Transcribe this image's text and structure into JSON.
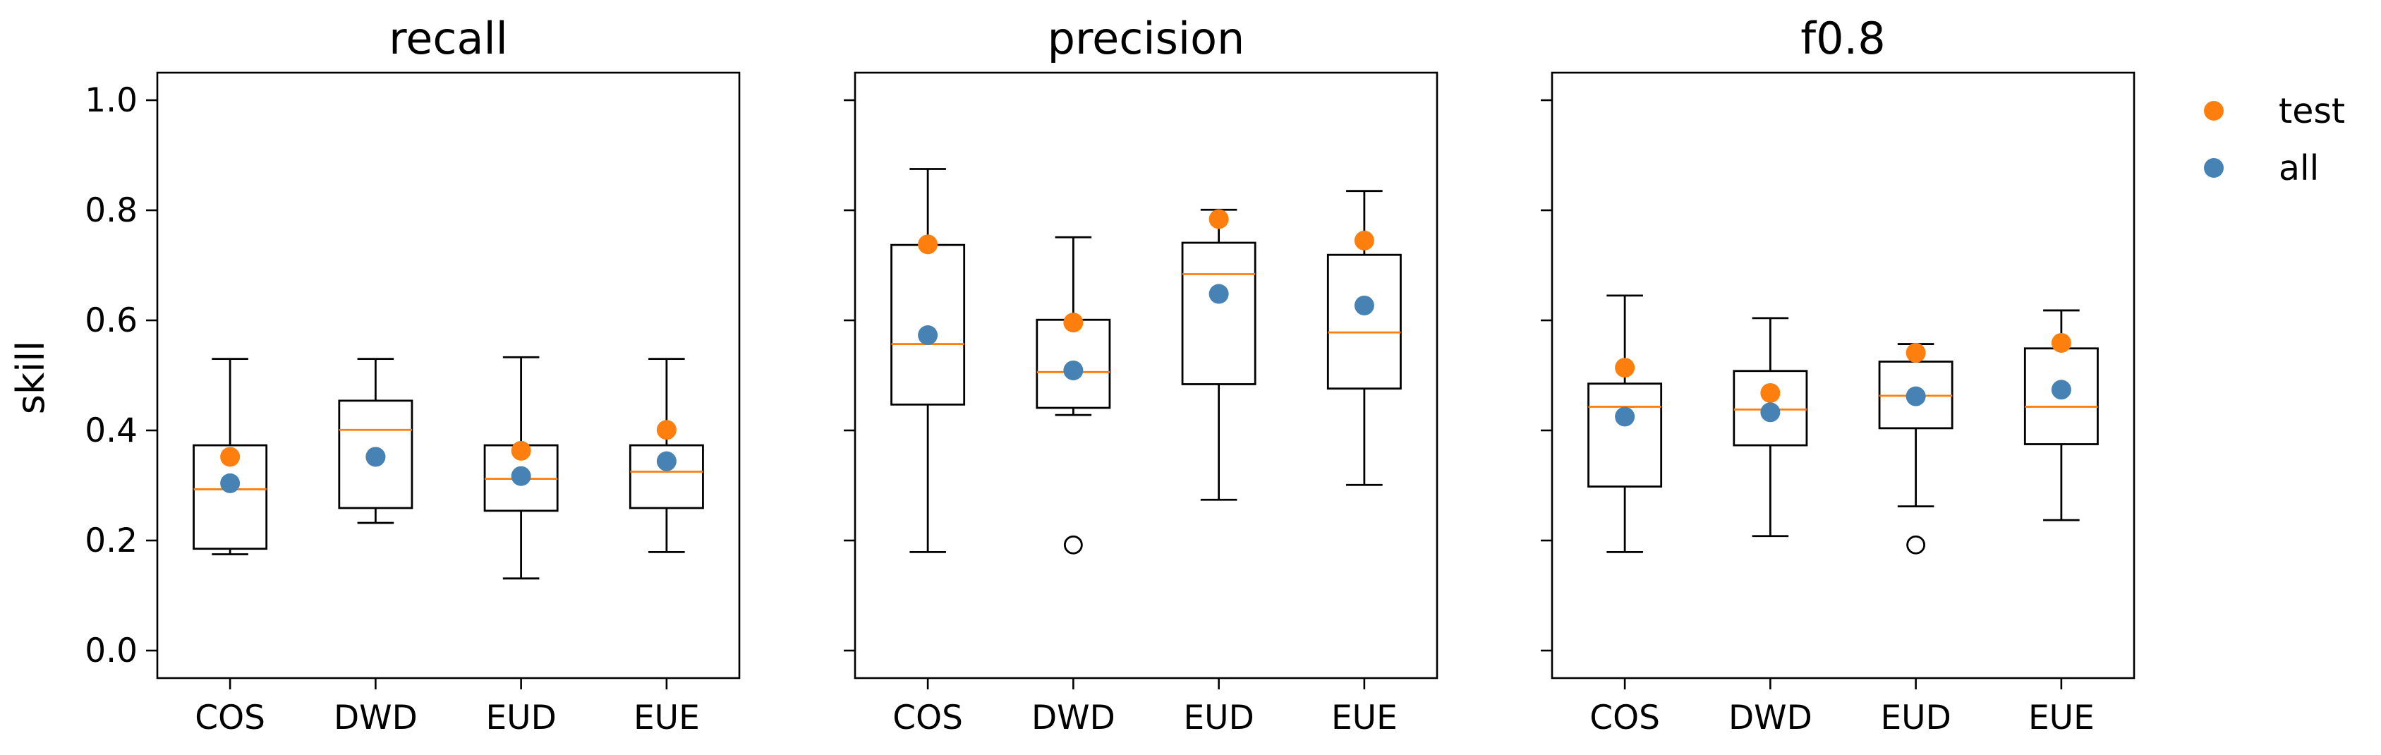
{
  "chart_data": {
    "type": "box",
    "ylabel": "skill",
    "ylim": [
      -0.05,
      1.05
    ],
    "yticks": [
      "0.0",
      "0.2",
      "0.4",
      "0.6",
      "0.8",
      "1.0"
    ],
    "yticks_values": [
      0.0,
      0.2,
      0.4,
      0.6,
      0.8,
      1.0
    ],
    "categories": [
      "COS",
      "DWD",
      "EUD",
      "EUE"
    ],
    "legend": {
      "placement": "outside-top-right",
      "entries": [
        {
          "label": "test",
          "color": "#ff7f0e"
        },
        {
          "label": "all",
          "color": "#4682b4"
        }
      ]
    },
    "colors": {
      "test": "#ff7f0e",
      "all": "#4682b4",
      "median": "#ff7f0e",
      "box": "#000000"
    },
    "panels": [
      {
        "title": "recall",
        "boxes": [
          {
            "category": "COS",
            "whisker_low": 0.175,
            "q1": 0.185,
            "median": 0.293,
            "q3": 0.373,
            "whisker_high": 0.53,
            "fliers": [],
            "test": 0.352,
            "all": 0.304
          },
          {
            "category": "DWD",
            "whisker_low": 0.232,
            "q1": 0.259,
            "median": 0.401,
            "q3": 0.454,
            "whisker_high": 0.53,
            "fliers": [],
            "test": 0.352,
            "all": 0.352
          },
          {
            "category": "EUD",
            "whisker_low": 0.131,
            "q1": 0.254,
            "median": 0.312,
            "q3": 0.373,
            "whisker_high": 0.533,
            "fliers": [],
            "test": 0.363,
            "all": 0.317
          },
          {
            "category": "EUE",
            "whisker_low": 0.179,
            "q1": 0.259,
            "median": 0.325,
            "q3": 0.373,
            "whisker_high": 0.53,
            "fliers": [],
            "test": 0.401,
            "all": 0.344
          }
        ]
      },
      {
        "title": "precision",
        "boxes": [
          {
            "category": "COS",
            "whisker_low": 0.179,
            "q1": 0.447,
            "median": 0.557,
            "q3": 0.737,
            "whisker_high": 0.875,
            "fliers": [],
            "test": 0.738,
            "all": 0.573
          },
          {
            "category": "DWD",
            "whisker_low": 0.428,
            "q1": 0.441,
            "median": 0.506,
            "q3": 0.601,
            "whisker_high": 0.751,
            "fliers": [
              0.192
            ],
            "test": 0.596,
            "all": 0.509
          },
          {
            "category": "EUD",
            "whisker_low": 0.274,
            "q1": 0.484,
            "median": 0.684,
            "q3": 0.741,
            "whisker_high": 0.801,
            "fliers": [],
            "test": 0.784,
            "all": 0.648
          },
          {
            "category": "EUE",
            "whisker_low": 0.301,
            "q1": 0.476,
            "median": 0.578,
            "q3": 0.719,
            "whisker_high": 0.835,
            "fliers": [],
            "test": 0.745,
            "all": 0.627
          }
        ]
      },
      {
        "title": "f0.8",
        "boxes": [
          {
            "category": "COS",
            "whisker_low": 0.179,
            "q1": 0.298,
            "median": 0.443,
            "q3": 0.485,
            "whisker_high": 0.645,
            "fliers": [],
            "test": 0.514,
            "all": 0.425
          },
          {
            "category": "DWD",
            "whisker_low": 0.208,
            "q1": 0.373,
            "median": 0.438,
            "q3": 0.508,
            "whisker_high": 0.604,
            "fliers": [],
            "test": 0.468,
            "all": 0.433
          },
          {
            "category": "EUD",
            "whisker_low": 0.262,
            "q1": 0.404,
            "median": 0.463,
            "q3": 0.525,
            "whisker_high": 0.557,
            "fliers": [
              0.192
            ],
            "test": 0.541,
            "all": 0.462
          },
          {
            "category": "EUE",
            "whisker_low": 0.237,
            "q1": 0.375,
            "median": 0.443,
            "q3": 0.549,
            "whisker_high": 0.618,
            "fliers": [],
            "test": 0.559,
            "all": 0.474
          }
        ]
      }
    ]
  }
}
